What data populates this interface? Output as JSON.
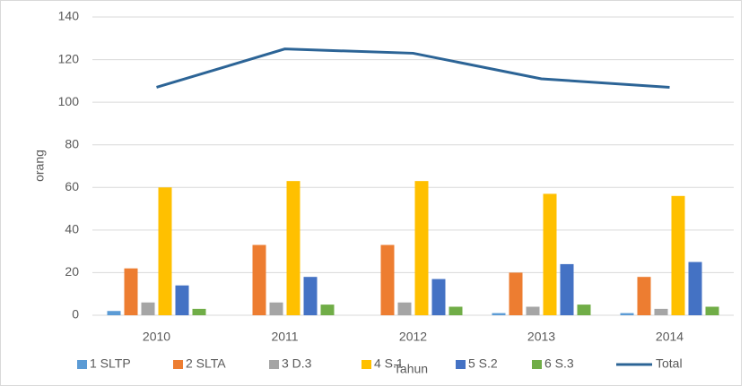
{
  "chart_data": {
    "type": "bar",
    "categories": [
      "2010",
      "2011",
      "2012",
      "2013",
      "2014"
    ],
    "xlabel": "Tahun",
    "ylabel": "orang",
    "ylim": [
      0,
      140
    ],
    "yticks": [
      0,
      20,
      40,
      60,
      80,
      100,
      120,
      140
    ],
    "grid": true,
    "legend": "bottom",
    "series": [
      {
        "name": "1 SLTP",
        "color": "#5b9bd5",
        "values": [
          2,
          0,
          0,
          1,
          1
        ]
      },
      {
        "name": "2 SLTA",
        "color": "#ed7d31",
        "values": [
          22,
          33,
          33,
          20,
          18
        ]
      },
      {
        "name": "3 D.3",
        "color": "#a5a5a5",
        "values": [
          6,
          6,
          6,
          4,
          3
        ]
      },
      {
        "name": "4 S.1",
        "color": "#ffc000",
        "values": [
          60,
          63,
          63,
          57,
          56
        ]
      },
      {
        "name": "5 S.2",
        "color": "#4472c4",
        "values": [
          14,
          18,
          17,
          24,
          25
        ]
      },
      {
        "name": "6 S.3",
        "color": "#70ad47",
        "values": [
          3,
          5,
          4,
          5,
          4
        ]
      },
      {
        "name": "Total",
        "color": "#2c6496",
        "type": "line",
        "values": [
          107,
          125,
          123,
          111,
          107
        ]
      }
    ]
  }
}
